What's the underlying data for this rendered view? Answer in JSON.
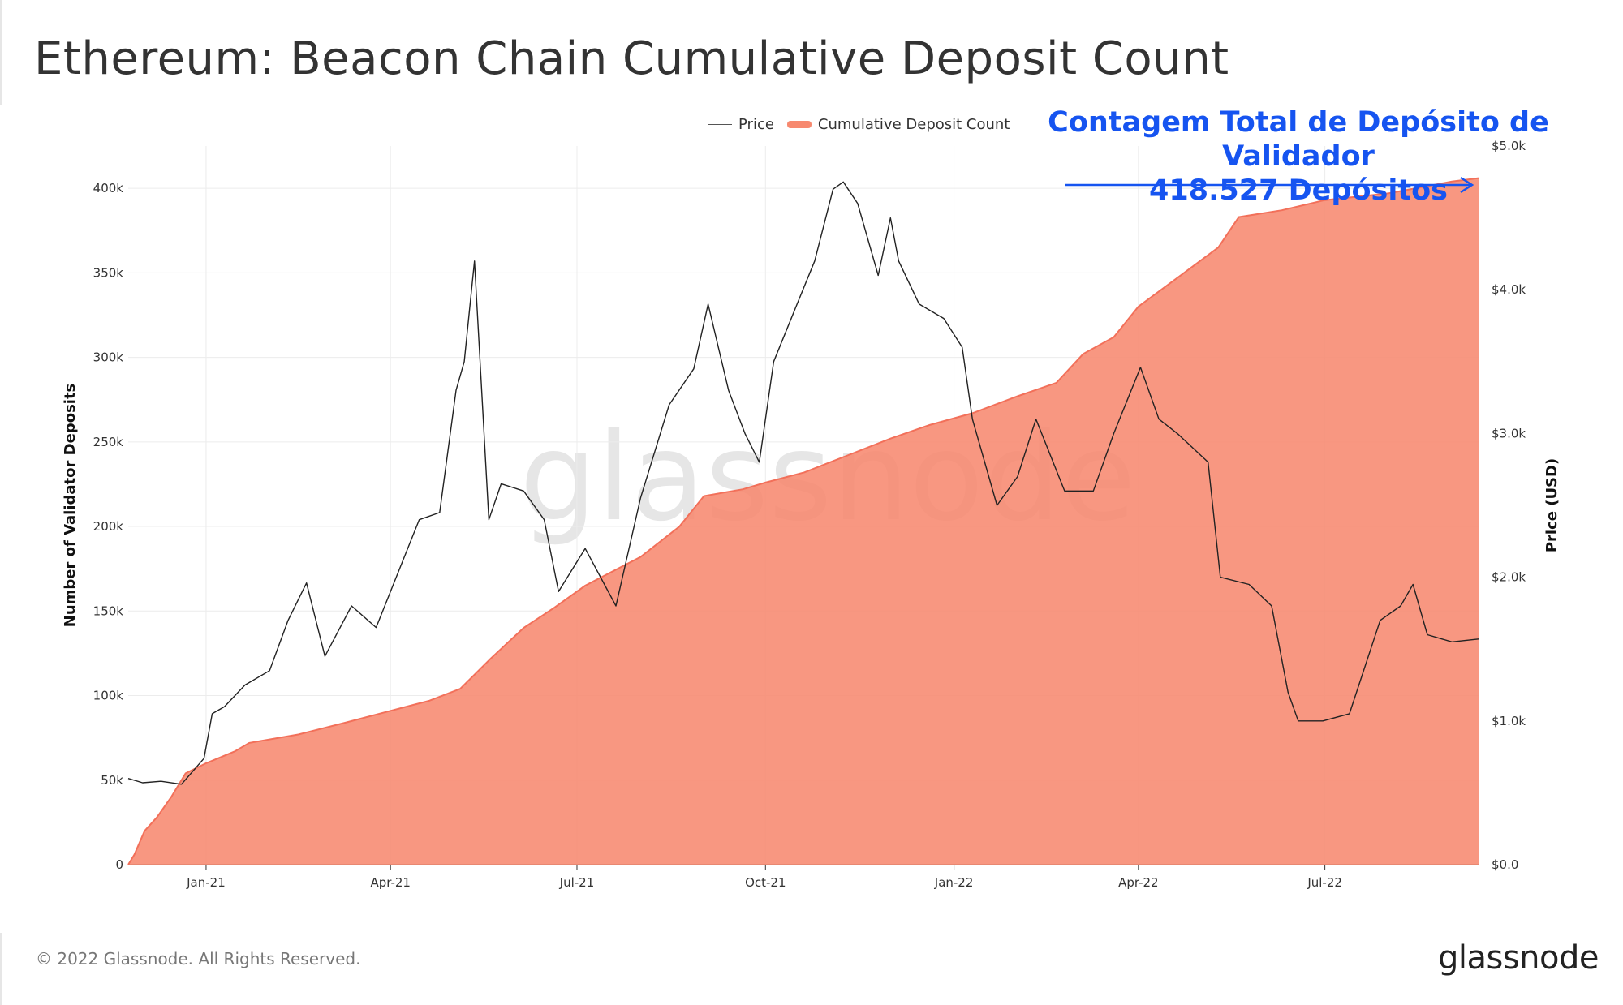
{
  "title": "Ethereum: Beacon Chain Cumulative Deposit Count",
  "legend": {
    "price": "Price",
    "deposits": "Cumulative Deposit Count"
  },
  "annotation": {
    "line1": "Contagem Total de Depósito de Validador",
    "line2": "418.527 Depósitos"
  },
  "watermark": "glassnode",
  "footer": {
    "copyright": "© 2022 Glassnode. All Rights Reserved.",
    "brand": "glassnode"
  },
  "colors": {
    "area": "#f7896f",
    "price_line": "#222222",
    "annotation": "#1654f0"
  },
  "chart_data": {
    "type": "area",
    "title": "Ethereum: Beacon Chain Cumulative Deposit Count",
    "x_ticks": [
      "Jan-21",
      "Apr-21",
      "Jul-21",
      "Oct-21",
      "Jan-22",
      "Apr-22",
      "Jul-22"
    ],
    "x_range": [
      "2020-11-24",
      "2022-09-14"
    ],
    "left_axis": {
      "label": "Number of Validator Deposits",
      "range": [
        0,
        425000
      ],
      "ticks": [
        "0",
        "50k",
        "100k",
        "150k",
        "200k",
        "250k",
        "300k",
        "350k",
        "400k"
      ]
    },
    "right_axis": {
      "label": "Price (USD)",
      "range": [
        0,
        5000
      ],
      "ticks": [
        "$0.0",
        "$1.0k",
        "$2.0k",
        "$3.0k",
        "$4.0k",
        "$5.0k"
      ]
    },
    "grid": true,
    "legend_position": "top-center",
    "series": [
      {
        "name": "Cumulative Deposit Count",
        "axis": "left",
        "type": "area",
        "x": [
          "2020-11-24",
          "2020-11-27",
          "2020-12-02",
          "2020-12-08",
          "2020-12-15",
          "2020-12-22",
          "2021-01-01",
          "2021-01-15",
          "2021-01-22",
          "2021-02-15",
          "2021-03-10",
          "2021-04-01",
          "2021-04-20",
          "2021-05-05",
          "2021-05-20",
          "2021-06-05",
          "2021-06-20",
          "2021-07-05",
          "2021-08-01",
          "2021-08-20",
          "2021-09-01",
          "2021-09-20",
          "2021-10-01",
          "2021-10-20",
          "2021-11-10",
          "2021-12-01",
          "2021-12-20",
          "2022-01-10",
          "2022-02-01",
          "2022-02-20",
          "2022-03-05",
          "2022-03-20",
          "2022-04-01",
          "2022-04-20",
          "2022-05-10",
          "2022-05-20",
          "2022-06-10",
          "2022-07-01",
          "2022-08-01",
          "2022-09-01",
          "2022-09-14"
        ],
        "values": [
          0,
          6000,
          20000,
          28000,
          40000,
          54000,
          60000,
          67000,
          72000,
          77000,
          84000,
          91000,
          97000,
          104000,
          122000,
          140000,
          152000,
          165000,
          182000,
          200000,
          218000,
          222000,
          226000,
          232000,
          242000,
          252000,
          260000,
          267000,
          277000,
          285000,
          302000,
          312000,
          330000,
          347000,
          365000,
          383000,
          387000,
          393000,
          397000,
          404000,
          406000
        ]
      },
      {
        "name": "Price",
        "axis": "right",
        "type": "line",
        "x": [
          "2020-11-24",
          "2020-12-01",
          "2020-12-10",
          "2020-12-20",
          "2020-12-31",
          "2021-01-04",
          "2021-01-10",
          "2021-01-20",
          "2021-02-01",
          "2021-02-10",
          "2021-02-19",
          "2021-02-28",
          "2021-03-13",
          "2021-03-25",
          "2021-04-15",
          "2021-04-25",
          "2021-05-03",
          "2021-05-07",
          "2021-05-12",
          "2021-05-19",
          "2021-05-25",
          "2021-06-05",
          "2021-06-15",
          "2021-06-22",
          "2021-07-05",
          "2021-07-20",
          "2021-08-01",
          "2021-08-15",
          "2021-08-27",
          "2021-09-03",
          "2021-09-13",
          "2021-09-21",
          "2021-09-28",
          "2021-10-05",
          "2021-10-15",
          "2021-10-25",
          "2021-11-03",
          "2021-11-08",
          "2021-11-15",
          "2021-11-25",
          "2021-12-01",
          "2021-12-05",
          "2021-12-15",
          "2021-12-27",
          "2022-01-05",
          "2022-01-10",
          "2022-01-22",
          "2022-02-01",
          "2022-02-10",
          "2022-02-24",
          "2022-03-10",
          "2022-03-20",
          "2022-04-02",
          "2022-04-11",
          "2022-04-20",
          "2022-05-05",
          "2022-05-11",
          "2022-05-25",
          "2022-06-05",
          "2022-06-13",
          "2022-06-18",
          "2022-06-30",
          "2022-07-13",
          "2022-07-28",
          "2022-08-07",
          "2022-08-13",
          "2022-08-20",
          "2022-09-01",
          "2022-09-14"
        ],
        "values": [
          600,
          570,
          580,
          560,
          740,
          1050,
          1100,
          1250,
          1350,
          1700,
          1960,
          1450,
          1800,
          1650,
          2400,
          2450,
          3300,
          3500,
          4200,
          2400,
          2650,
          2600,
          2400,
          1900,
          2200,
          1800,
          2550,
          3200,
          3450,
          3900,
          3300,
          3000,
          2800,
          3500,
          3850,
          4200,
          4700,
          4750,
          4600,
          4100,
          4500,
          4200,
          3900,
          3800,
          3600,
          3100,
          2500,
          2700,
          3100,
          2600,
          2600,
          3000,
          3460,
          3100,
          3000,
          2800,
          2000,
          1950,
          1800,
          1200,
          1000,
          1000,
          1050,
          1700,
          1800,
          1950,
          1600,
          1550,
          1570
        ]
      }
    ]
  }
}
